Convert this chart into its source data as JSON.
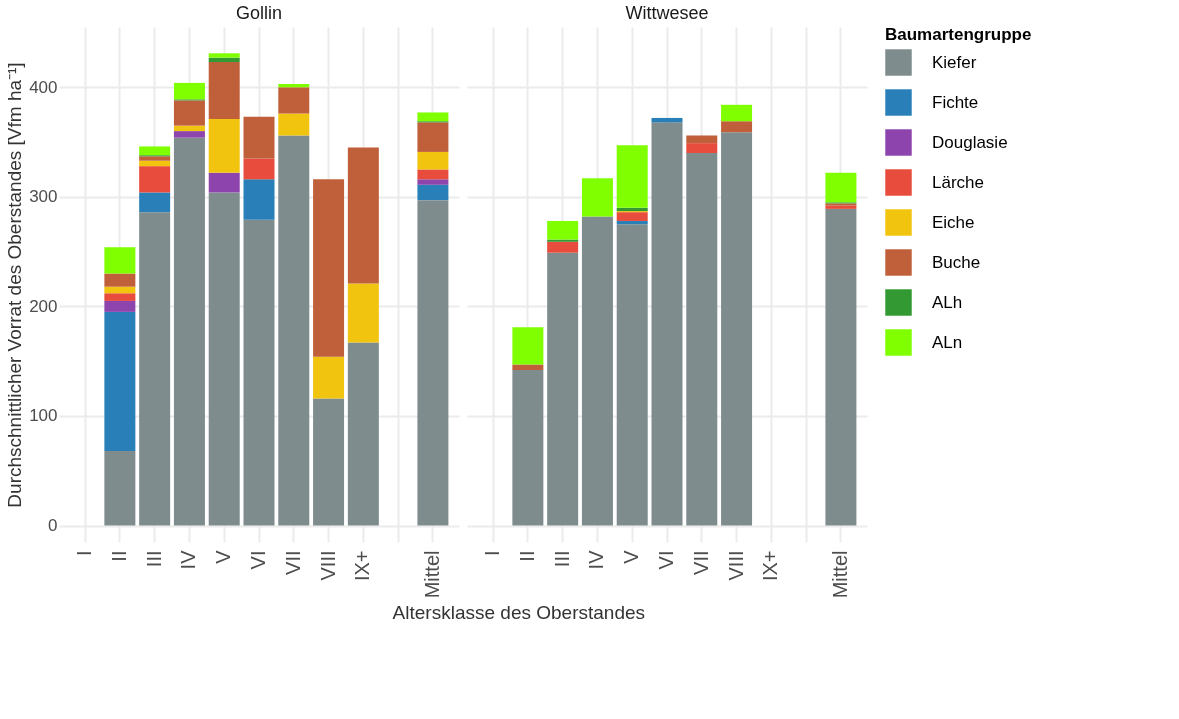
{
  "chart_data": [
    {
      "type": "bar",
      "title": "Gollin",
      "ylabel": "Durchschnittlicher Vorrat des Oberstandes [Vfm ha⁻¹]",
      "xlabel": "Altersklasse des Oberstandes",
      "stacked": true,
      "grid": true,
      "legend": "right",
      "legend_title": "Baumartengruppe",
      "ylim": [
        -15,
        455
      ],
      "yticks": [
        0,
        100,
        200,
        300,
        400
      ],
      "categories": [
        "I",
        "II",
        "III",
        "IV",
        "V",
        "VI",
        "VII",
        "VIII",
        "IX+",
        null,
        "Mittel"
      ],
      "series": [
        {
          "name": "Kiefer",
          "color": "#7f8c8d",
          "values": [
            null,
            68,
            286,
            354,
            304,
            279,
            356,
            116,
            167,
            null,
            297
          ]
        },
        {
          "name": "Fichte",
          "color": "#2980b9",
          "values": [
            null,
            127,
            18,
            null,
            null,
            37,
            null,
            null,
            null,
            null,
            14
          ]
        },
        {
          "name": "Douglasie",
          "color": "#8e44ad",
          "values": [
            null,
            10,
            null,
            6,
            18,
            null,
            null,
            null,
            null,
            null,
            5
          ]
        },
        {
          "name": "Lärche",
          "color": "#e74c3c",
          "values": [
            null,
            7,
            24,
            null,
            null,
            19,
            null,
            null,
            null,
            null,
            9
          ]
        },
        {
          "name": "Eiche",
          "color": "#f1c40f",
          "values": [
            null,
            6,
            5,
            5,
            49,
            null,
            20,
            38,
            54,
            null,
            16
          ]
        },
        {
          "name": "Buche",
          "color": "#c0603a",
          "values": [
            null,
            12,
            4,
            23,
            52,
            38,
            24,
            162,
            124,
            null,
            27
          ]
        },
        {
          "name": "ALh",
          "color": "#339933",
          "values": [
            null,
            null,
            1,
            1,
            4,
            null,
            null,
            null,
            null,
            null,
            1
          ]
        },
        {
          "name": "ALn",
          "color": "#80ff00",
          "values": [
            null,
            24,
            8,
            15,
            4,
            null,
            3,
            null,
            null,
            null,
            8
          ]
        }
      ]
    },
    {
      "type": "bar",
      "title": "Wittwesee",
      "stacked": true,
      "grid": true,
      "tick_labels": "x",
      "ylim": [
        -15,
        455
      ],
      "yticks": [
        0,
        100,
        200,
        300,
        400
      ],
      "categories": [
        "I",
        "II",
        "III",
        "IV",
        "V",
        "VI",
        "VII",
        "VIII",
        "IX+",
        null,
        "Mittel"
      ],
      "series": [
        {
          "name": "Kiefer",
          "color": "#7f8c8d",
          "values": [
            null,
            142,
            249,
            282,
            275,
            368,
            340,
            359,
            null,
            null,
            289
          ]
        },
        {
          "name": "Fichte",
          "color": "#2980b9",
          "values": [
            null,
            null,
            null,
            null,
            3,
            4,
            null,
            null,
            null,
            null,
            null
          ]
        },
        {
          "name": "Douglasie",
          "color": "#8e44ad",
          "values": [
            null,
            null,
            null,
            null,
            null,
            null,
            null,
            null,
            null,
            null,
            null
          ]
        },
        {
          "name": "Lärche",
          "color": "#e74c3c",
          "values": [
            null,
            null,
            10,
            null,
            8,
            null,
            9,
            null,
            null,
            null,
            3
          ]
        },
        {
          "name": "Eiche",
          "color": "#f1c40f",
          "values": [
            null,
            null,
            null,
            null,
            1,
            null,
            null,
            null,
            null,
            null,
            null
          ]
        },
        {
          "name": "Buche",
          "color": "#c0603a",
          "values": [
            null,
            5,
            null,
            null,
            null,
            null,
            7,
            10,
            null,
            null,
            2
          ]
        },
        {
          "name": "ALh",
          "color": "#339933",
          "values": [
            null,
            null,
            2,
            null,
            3,
            null,
            null,
            null,
            null,
            null,
            1
          ]
        },
        {
          "name": "ALn",
          "color": "#80ff00",
          "values": [
            null,
            34,
            17,
            35,
            57,
            null,
            null,
            15,
            null,
            null,
            27
          ]
        }
      ]
    }
  ]
}
